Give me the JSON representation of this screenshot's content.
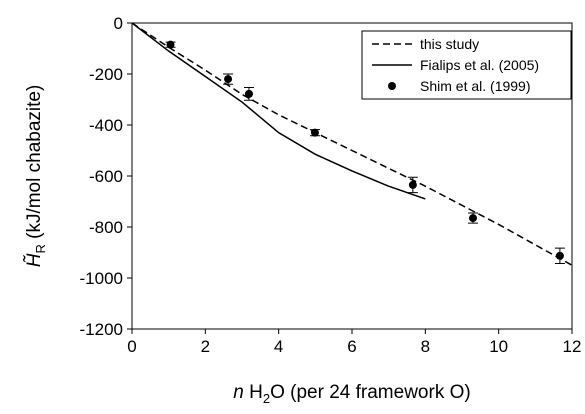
{
  "chart_data": {
    "type": "line",
    "xlabel": [
      "n",
      " H",
      "2",
      "O (per 24 framework O)"
    ],
    "ylabel": [
      "H̃",
      "R",
      " (kJ/mol chabazite)"
    ],
    "xlim": [
      0,
      12
    ],
    "xticks": [
      0,
      2,
      4,
      6,
      8,
      10,
      12
    ],
    "ylim": [
      -1200,
      0
    ],
    "yticks": [
      -1200,
      -1000,
      -800,
      -600,
      -400,
      -200,
      0
    ],
    "legend": "upper right",
    "series": [
      {
        "name": "this study",
        "color": "#000000",
        "style": "dashed",
        "x": [
          0,
          1,
          2,
          3,
          4,
          5,
          6,
          7,
          8,
          9,
          10,
          11,
          12
        ],
        "values": [
          0,
          -95,
          -185,
          -280,
          -360,
          -430,
          -500,
          -570,
          -640,
          -715,
          -790,
          -870,
          -950
        ]
      },
      {
        "name": "Fialips et al. (2005)",
        "color": "#000000",
        "style": "solid",
        "x": [
          0,
          1,
          2,
          3,
          4,
          5,
          6,
          7,
          8
        ],
        "values": [
          0,
          -110,
          -210,
          -310,
          -430,
          -515,
          -580,
          -640,
          -690
        ]
      },
      {
        "name": "Shim et al. (1999)",
        "color": "#000000",
        "style": "markers",
        "x": [
          1.05,
          2.62,
          3.19,
          4.99,
          7.66,
          9.3,
          11.67
        ],
        "values": [
          -85,
          -220,
          -278,
          -430,
          -635,
          -765,
          -913
        ],
        "errors": [
          10,
          20,
          25,
          12,
          30,
          20,
          30
        ]
      }
    ]
  }
}
